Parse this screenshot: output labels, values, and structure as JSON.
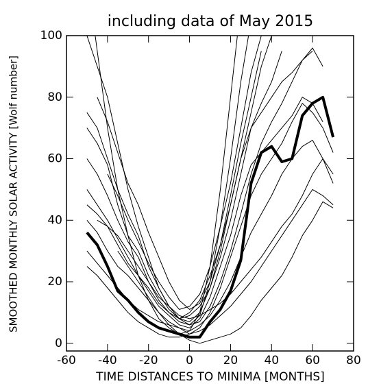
{
  "chart_data": {
    "type": "line",
    "title": "including data of May 2015",
    "x_label": "TIME  DISTANCES TO MINIMA [MONTHS]",
    "y_label": "SMOOTHED MONTHLY SOLAR ACTIVITY [Wolf number]",
    "x": [
      -50,
      -45,
      -40,
      -35,
      -30,
      -25,
      -20,
      -15,
      -10,
      -5,
      0,
      5,
      10,
      15,
      20,
      25,
      30,
      35,
      40,
      45,
      50,
      55,
      60,
      65,
      70
    ],
    "xlim": [
      -60,
      80
    ],
    "xticks": [
      -60,
      -40,
      -20,
      0,
      20,
      40,
      60,
      80
    ],
    "ylim": [
      -2.5,
      100
    ],
    "yticks": [
      0,
      20,
      40,
      60,
      80,
      100
    ],
    "series": [
      {
        "color": "#000000",
        "width": 1,
        "values": [
          120,
          95,
          70,
          50,
          35,
          22,
          14,
          8,
          5,
          3,
          4,
          10,
          25,
          50,
          80,
          110,
          null,
          null,
          null,
          null,
          null,
          null,
          null,
          null,
          null
        ]
      },
      {
        "color": "#000000",
        "width": 1,
        "values": [
          100,
          90,
          80,
          65,
          50,
          38,
          28,
          18,
          12,
          8,
          6,
          9,
          20,
          38,
          60,
          85,
          105,
          null,
          null,
          null,
          null,
          null,
          null,
          null,
          null
        ]
      },
      {
        "color": "#000000",
        "width": 1,
        "values": [
          75,
          70,
          60,
          50,
          42,
          35,
          25,
          18,
          12,
          8,
          7,
          10,
          18,
          30,
          45,
          60,
          75,
          90,
          100,
          null,
          null,
          null,
          null,
          null,
          null
        ]
      },
      {
        "color": "#000000",
        "width": 1,
        "values": [
          70,
          65,
          58,
          45,
          35,
          30,
          22,
          16,
          11,
          8,
          9,
          12,
          18,
          28,
          40,
          55,
          70,
          78,
          85,
          95,
          null,
          null,
          null,
          null,
          null
        ]
      },
      {
        "color": "#000000",
        "width": 1,
        "values": [
          60,
          55,
          48,
          40,
          33,
          28,
          20,
          14,
          10,
          8,
          10,
          14,
          22,
          32,
          45,
          60,
          70,
          75,
          80,
          85,
          88,
          92,
          95,
          null,
          null
        ]
      },
      {
        "color": "#000000",
        "width": 1,
        "values": [
          50,
          45,
          40,
          34,
          28,
          22,
          17,
          12,
          9,
          6,
          5,
          8,
          15,
          25,
          35,
          48,
          58,
          62,
          66,
          70,
          74,
          80,
          78,
          72,
          null
        ]
      },
      {
        "color": "#000000",
        "width": 1,
        "values": [
          40,
          36,
          30,
          25,
          22,
          18,
          14,
          10,
          7,
          5,
          3,
          5,
          10,
          18,
          28,
          38,
          48,
          55,
          60,
          65,
          72,
          78,
          75,
          70,
          62
        ]
      },
      {
        "color": "#000000",
        "width": 1,
        "values": [
          30,
          26,
          22,
          18,
          14,
          11,
          9,
          7,
          6,
          5,
          4,
          6,
          9,
          14,
          20,
          28,
          36,
          42,
          48,
          55,
          60,
          64,
          66,
          60,
          55
        ]
      },
      {
        "color": "#000000",
        "width": 1,
        "values": [
          25,
          22,
          18,
          14,
          10,
          7,
          5,
          3,
          2,
          2,
          3,
          4,
          6,
          9,
          12,
          16,
          20,
          25,
          30,
          35,
          40,
          45,
          50,
          48,
          45
        ]
      },
      {
        "color": "#000000",
        "width": 1,
        "values": [
          null,
          40,
          38,
          35,
          30,
          25,
          20,
          15,
          12,
          9,
          8,
          9,
          11,
          13,
          16,
          20,
          24,
          28,
          33,
          38,
          42,
          48,
          55,
          60,
          52
        ]
      },
      {
        "color": "#000000",
        "width": 1,
        "values": [
          null,
          null,
          null,
          30,
          25,
          20,
          15,
          10,
          6,
          3,
          1,
          0,
          1,
          2,
          3,
          5,
          9,
          14,
          18,
          22,
          28,
          35,
          40,
          46,
          44
        ]
      },
      {
        "color": "#000000",
        "width": 1,
        "values": [
          null,
          null,
          55,
          48,
          40,
          33,
          26,
          20,
          15,
          11,
          12,
          16,
          25,
          38,
          52,
          70,
          88,
          100,
          null,
          null,
          null,
          null,
          null,
          null,
          null
        ]
      },
      {
        "color": "#000000",
        "width": 1,
        "values": [
          null,
          80,
          72,
          62,
          52,
          45,
          36,
          28,
          20,
          14,
          11,
          13,
          20,
          32,
          48,
          65,
          80,
          95,
          null,
          null,
          null,
          null,
          null,
          null,
          null
        ]
      },
      {
        "color": "#000000",
        "width": 1,
        "values": [
          45,
          42,
          38,
          32,
          26,
          22,
          18,
          13,
          10,
          7,
          6,
          7,
          12,
          20,
          30,
          42,
          55,
          65,
          72,
          78,
          85,
          92,
          96,
          90,
          null
        ]
      },
      {
        "color": "#000000",
        "width": 4,
        "values": [
          36,
          32,
          25,
          17,
          14,
          10,
          7,
          5,
          4,
          3,
          2,
          2,
          7,
          11,
          17,
          27,
          52,
          62,
          64,
          59,
          60,
          74,
          78,
          80,
          67
        ]
      }
    ]
  }
}
